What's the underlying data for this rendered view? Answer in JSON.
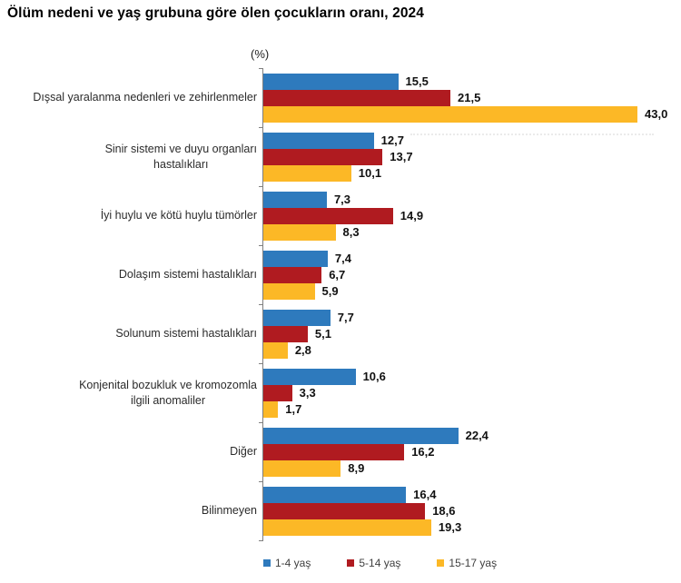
{
  "title": "Ölüm nedeni ve yaş grubuna göre ölen çocukların oranı, 2024",
  "unit_label": "(%)",
  "colors": {
    "series_blue": "#2E7ABD",
    "series_red": "#B01B20",
    "series_yellow": "#FCB826",
    "axis": "#7F7F7F"
  },
  "legend": {
    "items": [
      {
        "label": "1-4 yaş",
        "color": "#2E7ABD"
      },
      {
        "label": "5-14 yaş",
        "color": "#B01B20"
      },
      {
        "label": "15-17 yaş",
        "color": "#FCB826"
      }
    ]
  },
  "display": {
    "category_lines": [
      [
        "Dışsal yaralanma nedenleri ve zehirlenmeler"
      ],
      [
        "Sinir sistemi ve duyu organları",
        "hastalıkları"
      ],
      [
        "İyi huylu ve kötü huylu tümörler"
      ],
      [
        "Dolaşım sistemi hastalıkları"
      ],
      [
        "Solunum sistemi hastalıkları"
      ],
      [
        "Konjenital bozukluk ve kromozomla",
        "ilgili anomaliler"
      ],
      [
        "Diğer"
      ],
      [
        "Bilinmeyen"
      ]
    ]
  },
  "chart_data": {
    "type": "bar",
    "orientation": "horizontal",
    "title": "Ölüm nedeni ve yaş grubuna göre ölen çocukların oranı, 2024",
    "xlabel": "(%)",
    "ylabel": "",
    "xlim": [
      0,
      43
    ],
    "grid": false,
    "legend_position": "bottom",
    "value_label_format": "decimal-comma, 1 fraction digit",
    "categories": [
      "Dışsal yaralanma nedenleri ve zehirlenmeler",
      "Sinir sistemi ve duyu organları hastalıkları",
      "İyi huylu ve kötü huylu tümörler",
      "Dolaşım sistemi hastalıkları",
      "Solunum sistemi hastalıkları",
      "Konjenital bozukluk ve kromozomla ilgili anomaliler",
      "Diğer",
      "Bilinmeyen"
    ],
    "series": [
      {
        "name": "1-4 yaş",
        "color": "#2E7ABD",
        "values": [
          15.5,
          12.7,
          7.3,
          7.4,
          7.7,
          10.6,
          22.4,
          16.4
        ]
      },
      {
        "name": "5-14 yaş",
        "color": "#B01B20",
        "values": [
          21.5,
          13.7,
          14.9,
          6.7,
          5.1,
          3.3,
          16.2,
          18.6
        ]
      },
      {
        "name": "15-17 yaş",
        "color": "#FCB826",
        "values": [
          43.0,
          10.1,
          8.3,
          5.9,
          2.8,
          1.7,
          8.9,
          19.3
        ]
      }
    ]
  }
}
